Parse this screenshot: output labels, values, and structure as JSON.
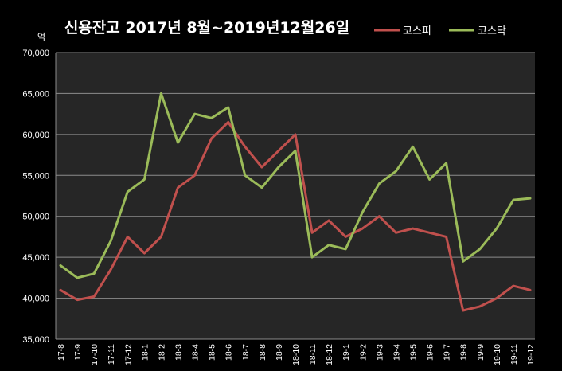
{
  "chart_data": {
    "type": "line",
    "title": "신용잔고  2017년 8월~2019년12월26일",
    "ylabel": "억",
    "xlabel": "",
    "ylim": [
      35000,
      70000
    ],
    "yticks": [
      "35,000",
      "40,000",
      "45,000",
      "50,000",
      "55,000",
      "60,000",
      "65,000",
      "70,000"
    ],
    "ytick_values": [
      35000,
      40000,
      45000,
      50000,
      55000,
      60000,
      65000,
      70000
    ],
    "categories": [
      "17-8",
      "17-9",
      "17-10",
      "17-11",
      "17-12",
      "18-1",
      "18-2",
      "18-3",
      "18-4",
      "18-5",
      "18-6",
      "18-7",
      "18-8",
      "18-9",
      "18-10",
      "18-11",
      "18-12",
      "19-1",
      "19-2",
      "19-3",
      "19-4",
      "19-5",
      "19-6",
      "19-7",
      "19-8",
      "19-9",
      "19-10",
      "19-11",
      "19-12"
    ],
    "grid": true,
    "legend": "top-right",
    "background": "#262626",
    "series": [
      {
        "name": "코스피",
        "color": "#c0504d",
        "values": [
          41000,
          39800,
          40200,
          43500,
          47500,
          45500,
          47500,
          53500,
          55000,
          59500,
          61500,
          58500,
          56000,
          58000,
          60000,
          48000,
          49500,
          47500,
          48500,
          50000,
          48000,
          48500,
          48000,
          47500,
          38500,
          39000,
          40000,
          41500,
          41000
        ]
      },
      {
        "name": "코스닥",
        "color": "#9bbb59",
        "values": [
          44000,
          42500,
          43000,
          47000,
          53000,
          54500,
          65000,
          59000,
          62500,
          62000,
          63300,
          55000,
          53500,
          56000,
          58000,
          45000,
          46500,
          46000,
          50500,
          54000,
          55500,
          58500,
          54500,
          56500,
          44500,
          46000,
          48500,
          52000,
          52200
        ]
      }
    ]
  }
}
